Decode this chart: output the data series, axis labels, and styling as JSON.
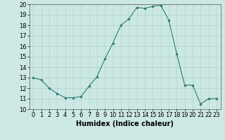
{
  "x": [
    0,
    1,
    2,
    3,
    4,
    5,
    6,
    7,
    8,
    9,
    10,
    11,
    12,
    13,
    14,
    15,
    16,
    17,
    18,
    19,
    20,
    21,
    22,
    23
  ],
  "y": [
    13,
    12.8,
    12,
    11.5,
    11.1,
    11.1,
    11.2,
    12.2,
    13.1,
    14.8,
    16.3,
    18.0,
    18.6,
    19.7,
    19.6,
    19.8,
    19.9,
    18.5,
    15.3,
    12.3,
    12.3,
    10.5,
    11.0,
    11.0
  ],
  "line_color": "#2d7d6e",
  "marker": "o",
  "marker_size": 2,
  "bg_color": "#cce8e4",
  "grid_color": "#b0d0cc",
  "xlabel": "Humidex (Indice chaleur)",
  "xlim": [
    -0.5,
    23.5
  ],
  "ylim": [
    10,
    20
  ],
  "yticks": [
    10,
    11,
    12,
    13,
    14,
    15,
    16,
    17,
    18,
    19,
    20
  ],
  "xticks": [
    0,
    1,
    2,
    3,
    4,
    5,
    6,
    7,
    8,
    9,
    10,
    11,
    12,
    13,
    14,
    15,
    16,
    17,
    18,
    19,
    20,
    21,
    22,
    23
  ],
  "tick_fontsize": 6,
  "xlabel_fontsize": 7
}
